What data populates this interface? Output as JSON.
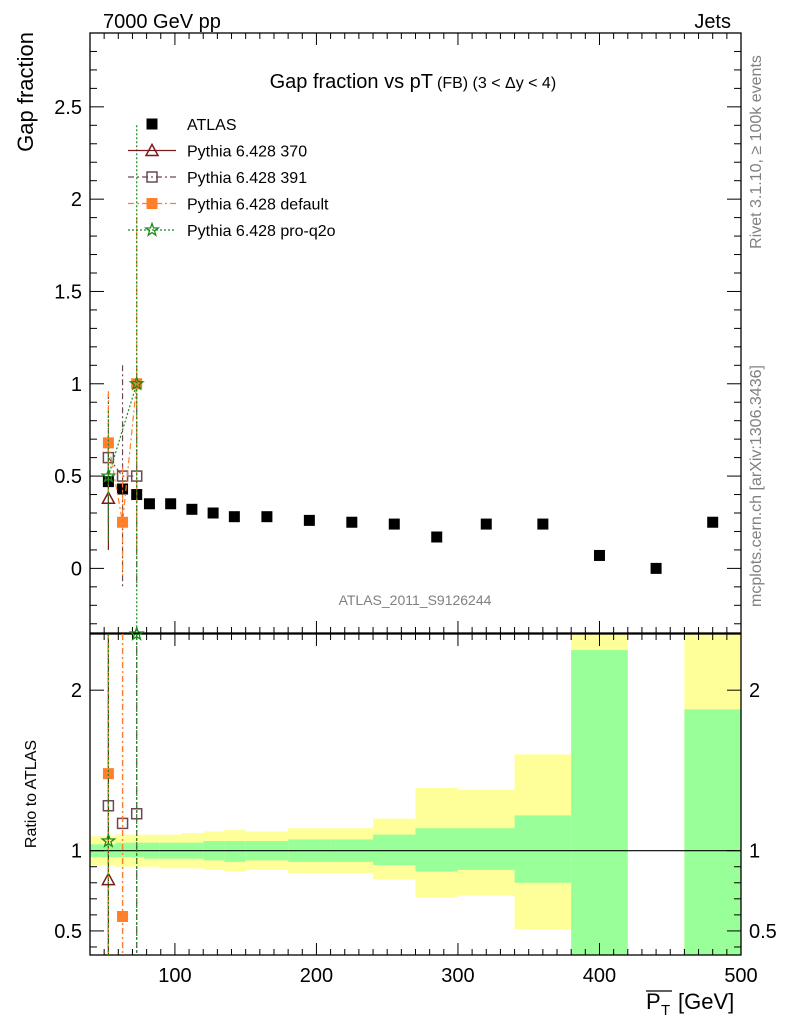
{
  "header": {
    "left": "7000 GeV pp",
    "right": "Jets"
  },
  "side_labels": {
    "rivet": "Rivet 3.1.10, ≥ 100k events",
    "mcplots": "mcplots.cern.ch [arXiv:1306.3436]"
  },
  "watermark": "ATLAS_2011_S9126244",
  "chart_data": [
    {
      "type": "scatter",
      "title": "Gap fraction vs pT",
      "title_extra": "(FB) (3 < Δy < 4)",
      "ylabel": "Gap fraction",
      "xlim": [
        40,
        500
      ],
      "ylim": [
        -0.35,
        2.9
      ],
      "yticks": [
        0,
        0.5,
        1,
        1.5,
        2,
        2.5
      ],
      "yticklabels": [
        "0",
        "0.5",
        "1",
        "1.5",
        "2",
        "2.5"
      ],
      "legend_position": "top-left",
      "series": [
        {
          "name": "ATLAS",
          "color": "#000000",
          "marker": "square",
          "x": [
            53,
            63,
            73,
            82,
            97,
            112,
            127,
            142,
            165,
            195,
            225,
            255,
            285,
            320,
            360,
            400,
            440,
            480
          ],
          "y": [
            0.47,
            0.43,
            0.4,
            0.35,
            0.35,
            0.32,
            0.3,
            0.28,
            0.28,
            0.26,
            0.25,
            0.24,
            0.17,
            0.24,
            0.24,
            0.07,
            0.0,
            0.25
          ],
          "yerr": [
            0.03,
            0.03,
            0.03,
            0.02,
            0.02,
            0.02,
            0.02,
            0.02,
            0.02,
            0.02,
            0.02,
            0.02,
            0.02,
            0.02,
            0.02,
            0.02,
            0.02,
            0.02
          ]
        },
        {
          "name": "Pythia 6.428 370",
          "color": "#7b1a1a",
          "marker": "open-triangle",
          "line": "solid",
          "x": [
            53
          ],
          "y": [
            0.38
          ],
          "yerr": [
            0.28
          ]
        },
        {
          "name": "Pythia 6.428 391",
          "color": "#6b4a52",
          "marker": "open-square",
          "line": "dashdot",
          "x": [
            53,
            63,
            73
          ],
          "y": [
            0.6,
            0.5,
            0.5
          ],
          "yerr": [
            0.35,
            0.6,
            0.6
          ]
        },
        {
          "name": "Pythia 6.428 default",
          "color": "#ff7f2a",
          "marker": "square",
          "line": "dashdot",
          "x": [
            53,
            63,
            73
          ],
          "y": [
            0.68,
            0.25,
            1.0
          ],
          "yerr": [
            0.28,
            0.3,
            0.9
          ]
        },
        {
          "name": "Pythia 6.428 pro-q2o",
          "color": "#1a8a1a",
          "marker": "star",
          "line": "dotted",
          "x": [
            53,
            73
          ],
          "y": [
            0.5,
            1.0
          ],
          "yerr": [
            0.35,
            1.4
          ]
        }
      ]
    },
    {
      "type": "scatter",
      "xlabel": "P_T [GeV]",
      "ylabel": "Ratio to ATLAS",
      "xlim": [
        40,
        500
      ],
      "ylim": [
        0.35,
        2.35
      ],
      "yticks": [
        0.5,
        1,
        2
      ],
      "yticklabels": [
        "0.5",
        "1",
        "2"
      ],
      "xticks": [
        100,
        200,
        300,
        400,
        500
      ],
      "xticklabels": [
        "100",
        "200",
        "300",
        "400",
        "500"
      ],
      "bands": {
        "edges": [
          40,
          58,
          68,
          78,
          89,
          105,
          120,
          135,
          150,
          180,
          210,
          240,
          270,
          300,
          340,
          380,
          420,
          460,
          500
        ],
        "inner_lo": [
          0.96,
          0.96,
          0.96,
          0.95,
          0.95,
          0.95,
          0.94,
          0.93,
          0.94,
          0.93,
          0.93,
          0.91,
          0.87,
          0.88,
          0.8,
          0.35,
          null,
          0.35
        ],
        "inner_hi": [
          1.04,
          1.05,
          1.05,
          1.05,
          1.05,
          1.05,
          1.06,
          1.06,
          1.06,
          1.07,
          1.07,
          1.1,
          1.14,
          1.14,
          1.22,
          2.25,
          null,
          1.88
        ],
        "outer_lo": [
          0.91,
          0.9,
          0.9,
          0.9,
          0.89,
          0.89,
          0.88,
          0.87,
          0.88,
          0.86,
          0.86,
          0.82,
          0.71,
          0.72,
          0.51,
          0.35,
          null,
          0.35
        ],
        "outer_hi": [
          1.09,
          1.1,
          1.1,
          1.1,
          1.1,
          1.11,
          1.12,
          1.13,
          1.12,
          1.14,
          1.14,
          1.2,
          1.39,
          1.38,
          1.6,
          2.35,
          null,
          2.35
        ],
        "inner_color": "#99ff99",
        "outer_color": "#ffff99"
      },
      "series": [
        {
          "name": "Pythia 6.428 370",
          "color": "#7b1a1a",
          "marker": "open-triangle",
          "x": [
            53
          ],
          "y": [
            0.82
          ]
        },
        {
          "name": "Pythia 6.428 391",
          "color": "#6b4a52",
          "marker": "open-square",
          "x": [
            53,
            63,
            73
          ],
          "y": [
            1.28,
            1.17,
            1.23
          ]
        },
        {
          "name": "Pythia 6.428 default",
          "color": "#ff7f2a",
          "marker": "square",
          "x": [
            53,
            63
          ],
          "y": [
            1.48,
            0.59
          ]
        },
        {
          "name": "Pythia 6.428 pro-q2o",
          "color": "#1a8a1a",
          "marker": "star",
          "x": [
            53,
            73
          ],
          "y": [
            1.06,
            2.35
          ]
        }
      ]
    }
  ]
}
